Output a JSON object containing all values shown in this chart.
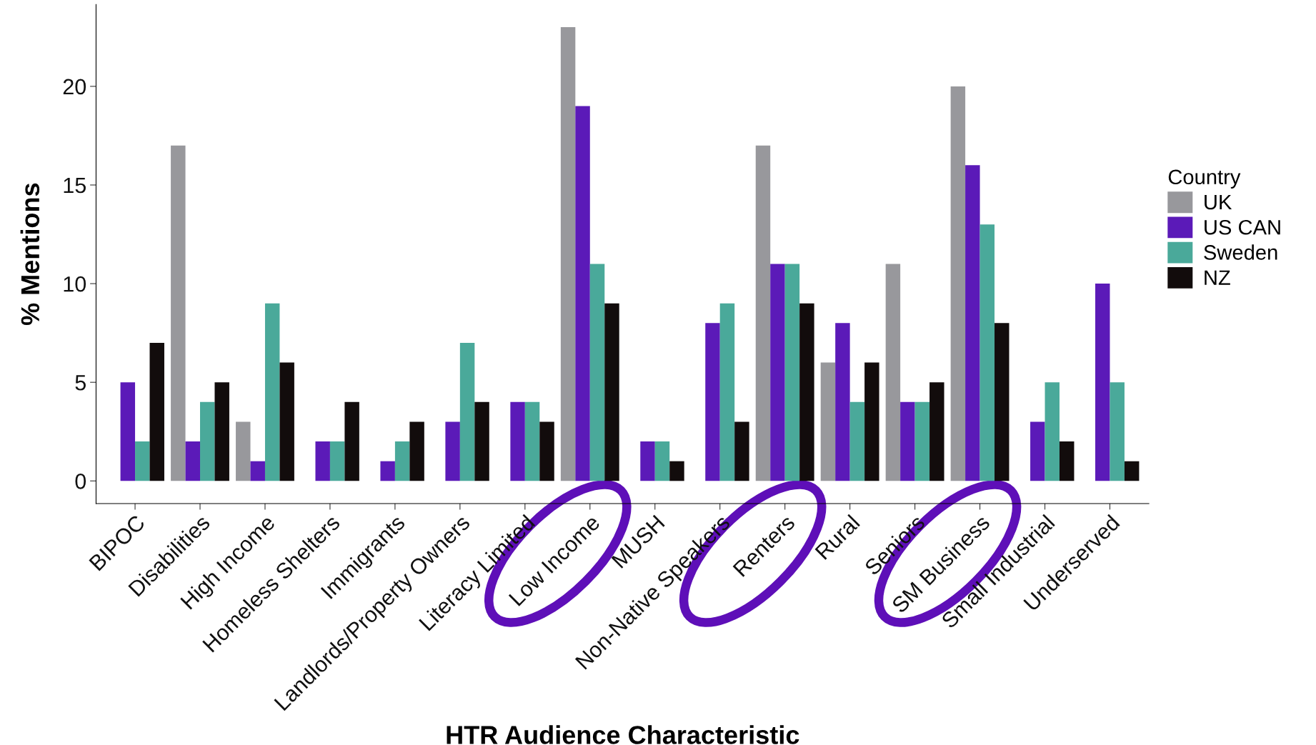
{
  "chart_data": {
    "type": "bar",
    "xlabel": "HTR Audience Characteristic",
    "ylabel": "% Mentions",
    "legend_title": "Country",
    "categories": [
      "BIPOC",
      "Disabilities",
      "High Income",
      "Homeless Shelters",
      "Immigrants",
      "Landlords/Property Owners",
      "Literacy Limited",
      "Low Income",
      "MUSH",
      "Non-Native Speakers",
      "Renters",
      "Rural",
      "Seniors",
      "SM Business",
      "Small Industrial",
      "Underserved"
    ],
    "series": [
      {
        "name": "UK",
        "color": "#98989c",
        "values": [
          0,
          17,
          3,
          0,
          0,
          0,
          0,
          23,
          0,
          0,
          17,
          6,
          11,
          20,
          0,
          0
        ]
      },
      {
        "name": "US CAN",
        "color": "#5b1ab8",
        "values": [
          5,
          2,
          1,
          2,
          1,
          3,
          4,
          19,
          2,
          8,
          11,
          8,
          4,
          16,
          3,
          10
        ]
      },
      {
        "name": "Sweden",
        "color": "#4aa99a",
        "values": [
          2,
          4,
          9,
          2,
          2,
          7,
          4,
          11,
          2,
          9,
          11,
          4,
          4,
          13,
          5,
          5
        ]
      },
      {
        "name": "NZ",
        "color": "#120c0c",
        "values": [
          7,
          5,
          6,
          4,
          3,
          4,
          3,
          9,
          1,
          3,
          9,
          6,
          5,
          8,
          2,
          1
        ]
      }
    ],
    "ylim": [
      -1.15,
      24.15
    ],
    "yticks": [
      0,
      5,
      10,
      15,
      20
    ],
    "grid": false,
    "legend": "right"
  }
}
